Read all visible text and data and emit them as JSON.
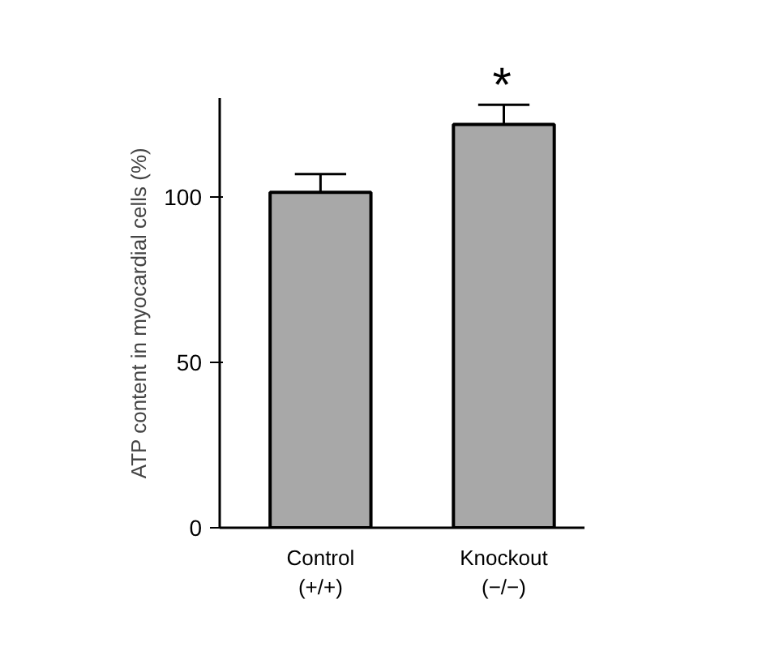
{
  "chart_data": {
    "type": "bar",
    "ylabel": "ATP content in myocardial cells (%)",
    "categories": [
      "Control\n(+/+)",
      "Knockout\n(−/−)"
    ],
    "values": [
      101.5,
      122
    ],
    "errors": [
      [
        101.5,
        107
      ],
      [
        122,
        128
      ]
    ],
    "color": "#a8a8a8",
    "ylim": [
      0,
      130
    ],
    "yticks": [
      0,
      50,
      100
    ],
    "grid": false,
    "annotations": [
      "*"
    ]
  }
}
